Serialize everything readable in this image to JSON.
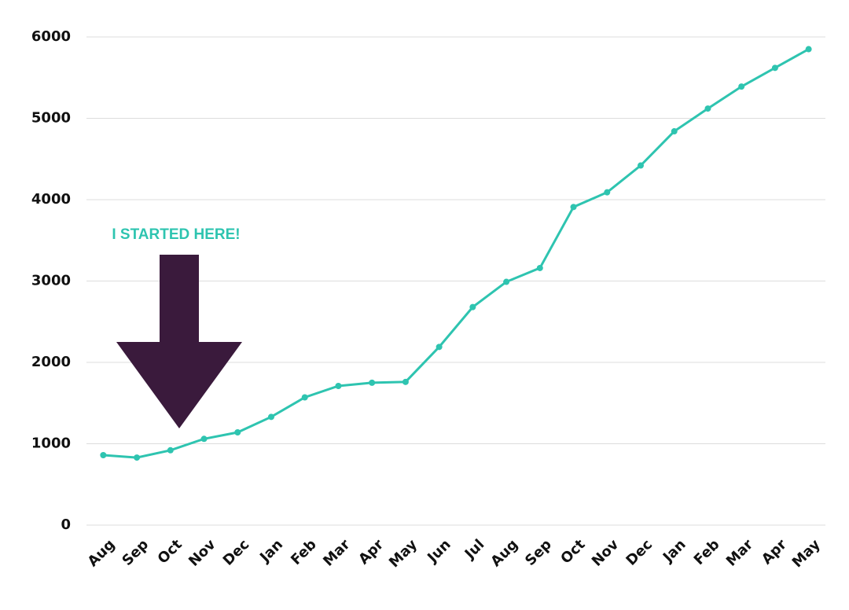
{
  "chart_data": {
    "type": "line",
    "annotation": "I STARTED HERE!",
    "categories": [
      "Aug",
      "Sep",
      "Oct",
      "Nov",
      "Dec",
      "Jan",
      "Feb",
      "Mar",
      "Apr",
      "May",
      "Jun",
      "Jul",
      "Aug",
      "Sep",
      "Oct",
      "Nov",
      "Dec",
      "Jan",
      "Feb",
      "Mar",
      "Apr",
      "May"
    ],
    "values": [
      860,
      830,
      920,
      1060,
      1140,
      1330,
      1570,
      1710,
      1750,
      1760,
      2190,
      2680,
      2990,
      3160,
      3910,
      4090,
      4420,
      4840,
      5120,
      5390,
      5620,
      5850
    ],
    "color": "#2ec4b0",
    "ylim": [
      0,
      6000
    ],
    "yticks": [
      0,
      1000,
      2000,
      3000,
      4000,
      5000,
      6000
    ],
    "grid": true
  }
}
